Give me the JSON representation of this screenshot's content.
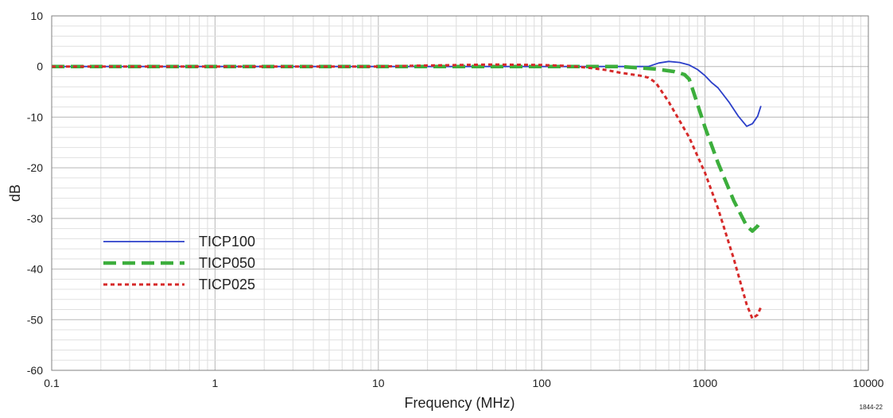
{
  "chart_data": {
    "type": "line",
    "xlabel": "Frequency (MHz)",
    "ylabel": "dB",
    "xscale": "log",
    "xlim": [
      0.1,
      10000
    ],
    "ylim": [
      -60,
      10
    ],
    "grid": true,
    "legend_position": "bottom-left",
    "x_ticks": [
      "0.1",
      "1",
      "10",
      "100",
      "1000",
      "10000"
    ],
    "y_ticks": [
      "10",
      "0",
      "-10",
      "-20",
      "-30",
      "-40",
      "-50",
      "-60"
    ],
    "figure_code": "1844-22",
    "series": [
      {
        "name": "TICP100",
        "color": "#2b3fc9",
        "style": "solid",
        "x": [
          0.1,
          10,
          100,
          300,
          450,
          520,
          600,
          700,
          800,
          900,
          1000,
          1100,
          1200,
          1400,
          1600,
          1800,
          1950,
          2100,
          2200
        ],
        "y": [
          0,
          0,
          0,
          0,
          0,
          0.7,
          1.0,
          0.8,
          0.3,
          -0.6,
          -1.8,
          -3.2,
          -4.2,
          -7.0,
          -9.8,
          -11.8,
          -11.3,
          -9.8,
          -7.8
        ]
      },
      {
        "name": "TICP050",
        "color": "#3cae3c",
        "style": "long-dash",
        "x": [
          0.1,
          100,
          300,
          500,
          650,
          750,
          800,
          850,
          1000,
          1200,
          1500,
          1800,
          1950,
          2100,
          2200
        ],
        "y": [
          0,
          0,
          0,
          -0.5,
          -1.0,
          -1.6,
          -2.5,
          -5.0,
          -12.0,
          -19.0,
          -26.5,
          -31.5,
          -32.5,
          -31.5,
          -30.5
        ]
      },
      {
        "name": "TICP025",
        "color": "#d62a2a",
        "style": "short-dash",
        "x": [
          0.1,
          10,
          20,
          50,
          100,
          150,
          200,
          250,
          300,
          400,
          450,
          500,
          600,
          800,
          1000,
          1200,
          1500,
          1800,
          1950,
          2100,
          2200
        ],
        "y": [
          0,
          0,
          0.2,
          0.4,
          0.3,
          0.1,
          -0.3,
          -0.7,
          -1.2,
          -1.8,
          -2.2,
          -3.2,
          -7.0,
          -14.0,
          -21.0,
          -28.0,
          -38.0,
          -47.0,
          -49.8,
          -49.0,
          -47.5
        ]
      }
    ]
  }
}
